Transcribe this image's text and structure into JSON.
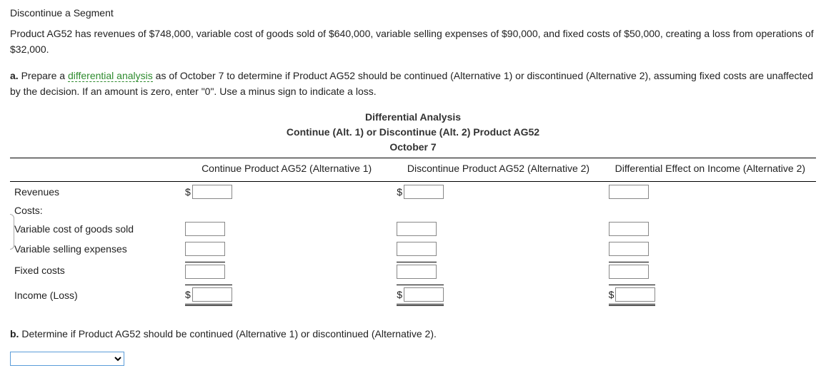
{
  "heading": "Discontinue a Segment",
  "intro": "Product AG52 has revenues of $748,000, variable cost of goods sold of $640,000, variable selling expenses of $90,000, and fixed costs of $50,000, creating a loss from operations of $32,000.",
  "part_a": {
    "prefix": "a. ",
    "text_before_link": "Prepare a ",
    "link_text": "differential analysis",
    "text_after_link": " as of October 7 to determine if Product AG52 should be continued (Alternative 1) or discontinued (Alternative 2), assuming fixed costs are unaffected by the decision. If an amount is zero, enter \"0\". Use a minus sign to indicate a loss."
  },
  "title_lines": {
    "l1": "Differential Analysis",
    "l2": "Continue (Alt. 1) or Discontinue (Alt. 2) Product AG52",
    "l3": "October 7"
  },
  "columns": {
    "c1": "Continue Product AG52 (Alternative 1)",
    "c2": "Discontinue Product AG52 (Alternative 2)",
    "c3": "Differential Effect on Income (Alternative 2)"
  },
  "rows": {
    "revenues": "Revenues",
    "costs": "Costs:",
    "var_cogs": "Variable cost of goods sold",
    "var_sell": "Variable selling expenses",
    "fixed": "Fixed costs",
    "income": "Income (Loss)"
  },
  "dollar": "$",
  "part_b": {
    "prefix": "b. ",
    "text": "Determine if Product AG52 should be continued (Alternative 1) or discontinued (Alternative 2)."
  },
  "colors": {
    "link": "#2e8b2e",
    "text": "#222222",
    "border": "#000000"
  }
}
